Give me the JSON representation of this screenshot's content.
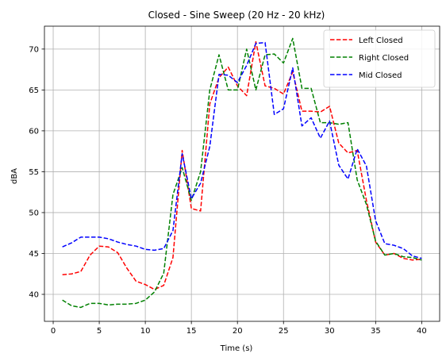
{
  "chart_data": {
    "type": "line",
    "title": "Closed - Sine Sweep (20 Hz - 20 kHz)",
    "xlabel": "Time (s)",
    "ylabel": "dBA",
    "xlim": [
      -0.95,
      41.95
    ],
    "ylim": [
      36.7,
      72.8
    ],
    "xticks": [
      0,
      5,
      10,
      15,
      20,
      25,
      30,
      35,
      40
    ],
    "yticks": [
      40,
      45,
      50,
      55,
      60,
      65,
      70
    ],
    "grid": true,
    "legend_position": "top-right",
    "line_style": "dashed",
    "x": [
      1,
      2,
      3,
      4,
      5,
      6,
      7,
      8,
      9,
      10,
      11,
      12,
      13,
      14,
      15,
      16,
      17,
      18,
      19,
      20,
      21,
      22,
      23,
      24,
      25,
      26,
      27,
      28,
      29,
      30,
      31,
      32,
      33,
      34,
      35,
      36,
      37,
      38,
      39,
      40
    ],
    "series": [
      {
        "name": "Left Closed",
        "color": "#ff0000",
        "values": [
          42.4,
          42.5,
          42.8,
          44.8,
          45.9,
          45.8,
          45.1,
          43.2,
          41.6,
          41.2,
          40.6,
          41.1,
          44.5,
          57.6,
          50.5,
          50.2,
          63.3,
          66.5,
          67.8,
          65.5,
          64.3,
          70.9,
          65.5,
          65.2,
          64.5,
          67.2,
          62.4,
          62.4,
          62.3,
          63.0,
          58.5,
          57.3,
          57.6,
          51.5,
          46.4,
          44.8,
          45.0,
          44.4,
          44.2,
          44.3
        ]
      },
      {
        "name": "Right Closed",
        "color": "#008000",
        "values": [
          39.3,
          38.6,
          38.4,
          38.9,
          38.9,
          38.7,
          38.8,
          38.8,
          38.9,
          39.3,
          40.3,
          42.6,
          52.2,
          55.5,
          51.5,
          55.0,
          65.0,
          69.3,
          65.0,
          65.0,
          70.0,
          65.0,
          69.3,
          69.4,
          68.3,
          71.3,
          65.2,
          65.2,
          61.0,
          61.0,
          60.8,
          61.0,
          54.0,
          51.0,
          46.5,
          44.8,
          45.0,
          44.6,
          44.5,
          44.2
        ]
      },
      {
        "name": "Mid Closed",
        "color": "#0000ff",
        "values": [
          45.8,
          46.3,
          47.0,
          47.0,
          47.0,
          46.8,
          46.4,
          46.1,
          45.9,
          45.5,
          45.4,
          45.6,
          47.8,
          57.2,
          51.7,
          53.6,
          58.1,
          66.9,
          66.8,
          65.9,
          68.0,
          70.7,
          70.8,
          62.0,
          62.7,
          67.7,
          60.6,
          61.6,
          59.1,
          61.2,
          55.8,
          54.1,
          57.8,
          55.7,
          49.0,
          46.2,
          46.0,
          45.6,
          44.7,
          44.4
        ]
      }
    ]
  }
}
